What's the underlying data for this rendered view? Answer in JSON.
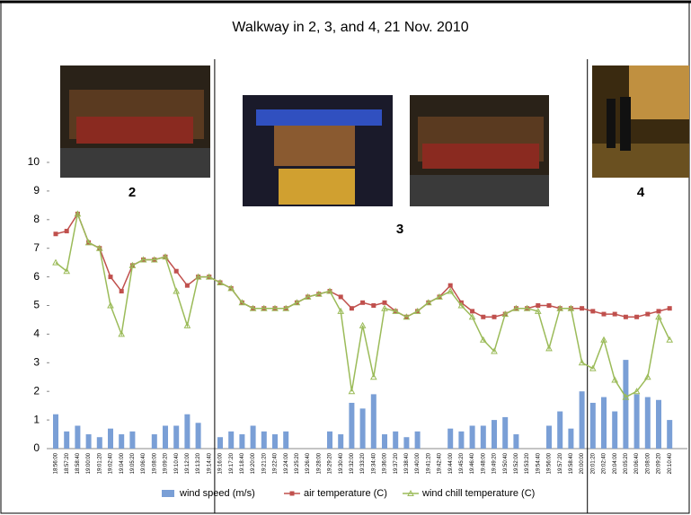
{
  "chart_data": {
    "type": "combo",
    "title": "Walkway in 2, 3, and 4, 21 Nov. 2010",
    "section_labels": [
      "2",
      "3",
      "4"
    ],
    "categories": [
      "18:56:00",
      "18:57:20",
      "18:58:40",
      "19:00:00",
      "19:01:20",
      "19:02:40",
      "19:04:00",
      "19:05:20",
      "19:06:40",
      "19:08:00",
      "19:09:20",
      "19:10:40",
      "19:12:00",
      "19:13:20",
      "19:14:40",
      "19:16:00",
      "19:17:20",
      "19:18:40",
      "19:20:00",
      "19:21:20",
      "19:22:40",
      "19:24:00",
      "19:25:20",
      "19:26:40",
      "19:28:00",
      "19:29:20",
      "19:30:40",
      "19:32:00",
      "19:33:20",
      "19:34:40",
      "19:36:00",
      "19:37:20",
      "19:38:40",
      "19:40:00",
      "19:41:20",
      "19:42:40",
      "19:44:00",
      "19:45:20",
      "19:46:40",
      "19:48:00",
      "19:49:20",
      "19:50:40",
      "19:52:00",
      "19:53:20",
      "19:54:40",
      "19:56:00",
      "19:57:20",
      "19:58:40",
      "20:00:00",
      "20:01:20",
      "20:02:40",
      "20:04:00",
      "20:05:20",
      "20:06:40",
      "20:08:00",
      "20:09:20",
      "20:10:40"
    ],
    "series": [
      {
        "name": "wind speed (m/s)",
        "kind": "bar",
        "color": "#7a9fd6",
        "values": [
          1.2,
          0.6,
          0.8,
          0.5,
          0.4,
          0.7,
          0.5,
          0.6,
          0,
          0.5,
          0.8,
          0.8,
          1.2,
          0.9,
          0,
          0.4,
          0.6,
          0.5,
          0.8,
          0.6,
          0.5,
          0.6,
          0,
          0,
          0,
          0.6,
          0.5,
          1.6,
          1.4,
          1.9,
          0.5,
          0.6,
          0.4,
          0.6,
          0,
          0,
          0.7,
          0.6,
          0.8,
          0.8,
          1.0,
          1.1,
          0.5,
          0,
          0,
          0.8,
          1.3,
          0.7,
          2.0,
          1.6,
          1.8,
          1.3,
          3.1,
          1.9,
          1.8,
          1.7,
          1.0
        ]
      },
      {
        "name": "air temperature (C)",
        "kind": "line",
        "marker": "square",
        "color": "#c0504d",
        "values": [
          7.5,
          7.6,
          8.2,
          7.2,
          7.0,
          6.0,
          5.5,
          6.4,
          6.6,
          6.6,
          6.7,
          6.2,
          5.7,
          6.0,
          6.0,
          5.8,
          5.6,
          5.1,
          4.9,
          4.9,
          4.9,
          4.9,
          5.1,
          5.3,
          5.4,
          5.5,
          5.3,
          4.9,
          5.1,
          5.0,
          5.1,
          4.8,
          4.6,
          4.8,
          5.1,
          5.3,
          5.7,
          5.1,
          4.8,
          4.6,
          4.6,
          4.7,
          4.9,
          4.9,
          5.0,
          5.0,
          4.9,
          4.9,
          4.9,
          4.8,
          4.7,
          4.7,
          4.6,
          4.6,
          4.7,
          4.8,
          4.9
        ]
      },
      {
        "name": "wind chill temperature (C)",
        "kind": "line",
        "marker": "triangle",
        "color": "#9bbb59",
        "values": [
          6.5,
          6.2,
          8.2,
          7.2,
          7.0,
          5.0,
          4.0,
          6.4,
          6.6,
          6.6,
          6.7,
          5.5,
          4.3,
          6.0,
          6.0,
          5.8,
          5.6,
          5.1,
          4.9,
          4.9,
          4.9,
          4.9,
          5.1,
          5.3,
          5.4,
          5.5,
          4.8,
          2.0,
          4.3,
          2.5,
          4.9,
          4.8,
          4.6,
          4.8,
          5.1,
          5.3,
          5.5,
          5.0,
          4.6,
          3.8,
          3.4,
          4.7,
          4.9,
          4.9,
          4.8,
          3.5,
          4.9,
          4.9,
          3.0,
          2.8,
          3.8,
          2.4,
          1.8,
          2.0,
          2.5,
          4.6,
          3.8
        ]
      }
    ],
    "ylim": [
      0,
      10
    ],
    "yticks": [
      0,
      1,
      2,
      3,
      4,
      5,
      6,
      7,
      8,
      9,
      10
    ],
    "grid": false,
    "legend": "bottom"
  }
}
